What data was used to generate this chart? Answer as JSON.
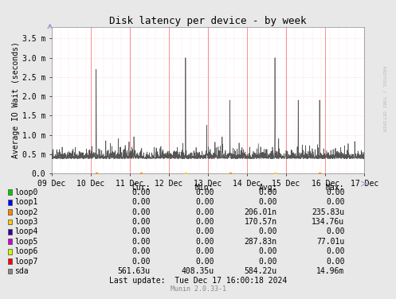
{
  "title": "Disk latency per device - by week",
  "ylabel": "Average IO Wait (seconds)",
  "background_color": "#e8e8e8",
  "plot_background_color": "#ffffff",
  "yticks_labels": [
    "0.0",
    "0.5 m",
    "1.0 m",
    "1.5 m",
    "2.0 m",
    "2.5 m",
    "3.0 m",
    "3.5 m"
  ],
  "yticks_values": [
    0.0,
    0.0005,
    0.001,
    0.0015,
    0.002,
    0.0025,
    0.003,
    0.0035
  ],
  "xticks_labels": [
    "09 Dec",
    "10 Dec",
    "11 Dec",
    "12 Dec",
    "13 Dec",
    "14 Dec",
    "15 Dec",
    "16 Dec",
    "17 Dec"
  ],
  "xmin": 0,
  "xmax": 2016,
  "ymin": 0,
  "ymax": 0.0038,
  "right_label": "RRDTOOL / TOBI OETIKER",
  "legend_items": [
    {
      "name": "loop0",
      "color": "#00cc00"
    },
    {
      "name": "loop1",
      "color": "#0000ff"
    },
    {
      "name": "loop2",
      "color": "#ff8800"
    },
    {
      "name": "loop3",
      "color": "#ffcc00"
    },
    {
      "name": "loop4",
      "color": "#330099"
    },
    {
      "name": "loop5",
      "color": "#cc00cc"
    },
    {
      "name": "loop6",
      "color": "#ccff00"
    },
    {
      "name": "loop7",
      "color": "#ff0000"
    },
    {
      "name": "sda",
      "color": "#888888"
    }
  ],
  "table_headers": [
    "Cur:",
    "Min:",
    "Avg:",
    "Max:"
  ],
  "table_data": [
    [
      "0.00",
      "0.00",
      "0.00",
      "0.00"
    ],
    [
      "0.00",
      "0.00",
      "0.00",
      "0.00"
    ],
    [
      "0.00",
      "0.00",
      "206.01n",
      "235.83u"
    ],
    [
      "0.00",
      "0.00",
      "170.57n",
      "134.76u"
    ],
    [
      "0.00",
      "0.00",
      "0.00",
      "0.00"
    ],
    [
      "0.00",
      "0.00",
      "287.83n",
      "77.01u"
    ],
    [
      "0.00",
      "0.00",
      "0.00",
      "0.00"
    ],
    [
      "0.00",
      "0.00",
      "0.00",
      "0.00"
    ],
    [
      "561.63u",
      "408.35u",
      "584.22u",
      "14.96m"
    ]
  ],
  "last_update": "Last update:  Tue Dec 17 16:00:18 2024",
  "munin_version": "Munin 2.0.33-1",
  "sda_line_color": "#555555",
  "num_points": 2016
}
